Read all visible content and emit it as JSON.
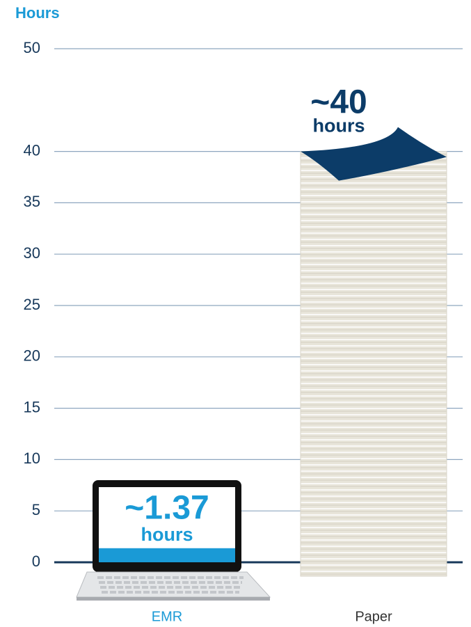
{
  "chart_data": {
    "type": "bar",
    "y_axis_title": "Hours",
    "categories": [
      "EMR",
      "Paper"
    ],
    "values": [
      1.37,
      40
    ],
    "value_labels": [
      "~1.37",
      "~40"
    ],
    "value_label_unit": "hours",
    "colors": [
      "#1a9ad6",
      "#e8e5da"
    ],
    "ylim": [
      0,
      50
    ],
    "yticks": [
      0,
      5,
      10,
      15,
      20,
      25,
      30,
      35,
      40,
      50
    ],
    "grid": true
  }
}
